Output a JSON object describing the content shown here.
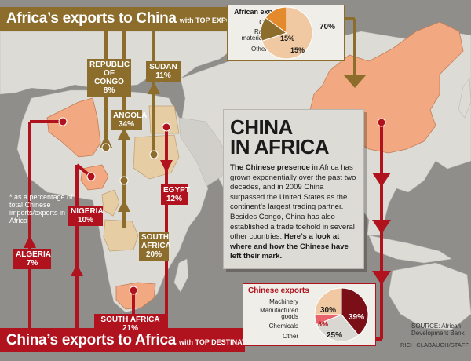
{
  "top_banner": {
    "title": "Africa’s exports to China",
    "subtitle": "with TOP EXPORTERS*",
    "arrows": "▶ ▶ ▶"
  },
  "bottom_banner": {
    "title": "China’s exports to Africa",
    "subtitle": "with TOP DESTINATIONS*",
    "arrows": "◀ ◀ ◀"
  },
  "note": "* as a percentage of total Chinese imports/exports in Africa",
  "exporters": {
    "congo": {
      "name": "REPUBLIC OF CONGO",
      "pct": "8%"
    },
    "sudan": {
      "name": "SUDAN",
      "pct": "11%"
    },
    "angola": {
      "name": "ANGOLA",
      "pct": "34%"
    }
  },
  "destinations": {
    "nigeria": {
      "name": "NIGERIA",
      "pct": "10%"
    },
    "egypt": {
      "name": "EGYPT",
      "pct": "12%"
    },
    "algeria": {
      "name": "ALGERIA",
      "pct": "7%"
    },
    "south_africa": {
      "name": "SOUTH AFRICA",
      "pct": "20%"
    },
    "south_africa_bottom": "SOUTH AFRICA 21%"
  },
  "infobox": {
    "title_line1": "CHINA",
    "title_line2": "IN AFRICA",
    "lead": "The Chinese presence",
    "body": " in Africa has grown exponentially over the past two decades, and in 2009 China surpassed the United States as the continent’s largest trading partner. Besides Congo, China has also established a trade toehold in several other countries.",
    "closing": "Here’s a look at where and how the Chinese have left their mark."
  },
  "african_exports": {
    "title": "African exports",
    "labels": [
      "Oil",
      "Raw materials",
      "Other"
    ],
    "values_text": [
      "70%",
      "15%",
      "15%"
    ]
  },
  "chinese_exports": {
    "title": "Chinese exports",
    "labels": [
      "Machinery",
      "Manufactured goods",
      "Chemicals",
      "Other"
    ],
    "values_text": [
      "39%",
      "30%",
      "6%",
      "25%"
    ]
  },
  "chart_data": [
    {
      "type": "pie",
      "title": "African exports",
      "categories": [
        "Oil",
        "Raw materials",
        "Other"
      ],
      "values": [
        70,
        15,
        15
      ],
      "colors": [
        "#f0c9a3",
        "#8c6d2c",
        "#e28a2c"
      ]
    },
    {
      "type": "pie",
      "title": "Chinese exports",
      "categories": [
        "Machinery",
        "Manufactured goods",
        "Chemicals",
        "Other"
      ],
      "values": [
        39,
        30,
        6,
        25
      ],
      "colors": [
        "#7a0f18",
        "#d8d7d2",
        "#e8636b",
        "#f0c9a3"
      ]
    }
  ],
  "source": "SOURCE: African Development Bank",
  "credit": "RICH CLABAUGH/STAFF",
  "colors": {
    "ocean": "#8f8e8a",
    "land": "#dcdbd6",
    "gold": "#8c6d2c",
    "red": "#b1131e",
    "highlight": "#f2a981",
    "tan": "#e6cda4"
  }
}
